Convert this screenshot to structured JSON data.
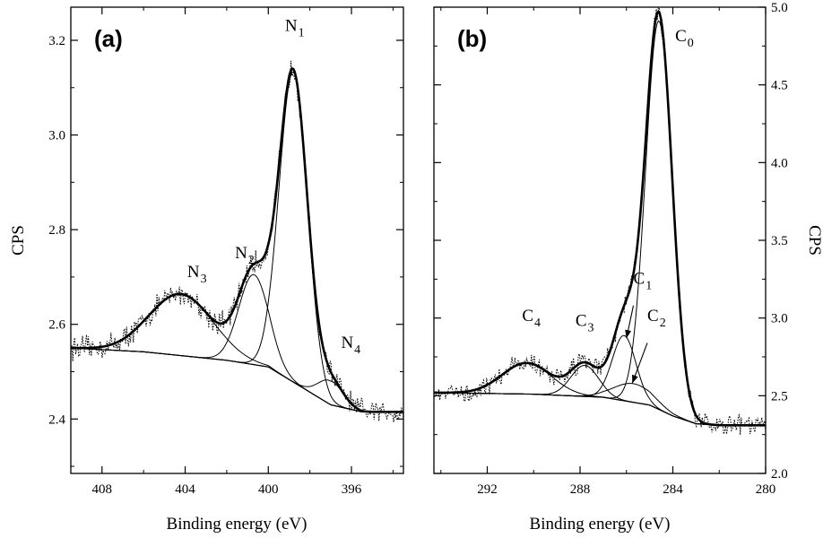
{
  "chart_data": [
    {
      "panel": "(a)",
      "type": "line",
      "xlabel": "Binding energy (eV)",
      "ylabel": "CPS",
      "xlim": [
        409.5,
        393.5
      ],
      "ylim": [
        2.285,
        3.27
      ],
      "x_ticks": [
        408,
        404,
        400,
        396
      ],
      "y_ticks": [
        2.4,
        2.6,
        2.8,
        3.0,
        3.2
      ],
      "y_tick_labels": [
        "2.4",
        "2.6",
        "2.8",
        "3.0",
        "3.2"
      ],
      "baseline": {
        "x": [
          409.5,
          406,
          402,
          400,
          398.5,
          397,
          395.5,
          393.5
        ],
        "y": [
          2.55,
          2.542,
          2.524,
          2.51,
          2.47,
          2.43,
          2.415,
          2.415
        ]
      },
      "envelope_noise": 0.02,
      "components": [
        {
          "name": "N",
          "sub": "1",
          "center": 398.8,
          "height": 0.655,
          "fwhm": 1.6
        },
        {
          "name": "N",
          "sub": "2",
          "center": 400.7,
          "height": 0.19,
          "fwhm": 1.7
        },
        {
          "name": "N",
          "sub": "3",
          "center": 404.2,
          "height": 0.13,
          "fwhm": 3.6
        },
        {
          "name": "N",
          "sub": "4",
          "center": 397.0,
          "height": 0.05,
          "fwhm": 1.4
        }
      ],
      "annotations": [
        {
          "name": "N",
          "sub": "1",
          "x": 399.2,
          "y": 3.22
        },
        {
          "name": "N",
          "sub": "2",
          "x": 401.6,
          "y": 2.74
        },
        {
          "name": "N",
          "sub": "3",
          "x": 403.9,
          "y": 2.7
        },
        {
          "name": "N",
          "sub": "4",
          "x": 396.5,
          "y": 2.55
        }
      ]
    },
    {
      "panel": "(b)",
      "type": "line",
      "xlabel": "Binding energy (eV)",
      "ylabel": "CPS",
      "xlim": [
        294.3,
        280
      ],
      "ylim": [
        2.0,
        5.0
      ],
      "x_ticks": [
        292,
        288,
        284,
        280
      ],
      "y_ticks": [
        2.0,
        2.5,
        3.0,
        3.5,
        4.0,
        4.5,
        5.0
      ],
      "y_tick_labels": [
        "2.0",
        "2.5",
        "3.0",
        "3.5",
        "4.0",
        "4.5",
        "5.0"
      ],
      "baseline": {
        "x": [
          294.3,
          290,
          287,
          285,
          284,
          283,
          282,
          280
        ],
        "y": [
          2.52,
          2.51,
          2.49,
          2.44,
          2.37,
          2.32,
          2.31,
          2.31
        ]
      },
      "envelope_noise": 0.05,
      "components": [
        {
          "name": "C",
          "sub": "0",
          "center": 284.6,
          "height": 2.5,
          "fwhm": 1.35
        },
        {
          "name": "C",
          "sub": "1",
          "center": 286.1,
          "height": 0.42,
          "fwhm": 1.2
        },
        {
          "name": "C",
          "sub": "2",
          "center": 285.7,
          "height": 0.12,
          "fwhm": 2.0
        },
        {
          "name": "C",
          "sub": "3",
          "center": 287.8,
          "height": 0.2,
          "fwhm": 1.4
        },
        {
          "name": "C",
          "sub": "4",
          "center": 290.3,
          "height": 0.2,
          "fwhm": 2.5
        }
      ],
      "annotations": [
        {
          "name": "C",
          "sub": "0",
          "x": 283.9,
          "y": 4.78
        },
        {
          "name": "C",
          "sub": "1",
          "x": 285.7,
          "y": 3.22
        },
        {
          "name": "C",
          "sub": "2",
          "x": 285.1,
          "y": 2.98
        },
        {
          "name": "C",
          "sub": "3",
          "x": 288.2,
          "y": 2.95
        },
        {
          "name": "C",
          "sub": "4",
          "x": 290.5,
          "y": 2.98
        }
      ]
    }
  ]
}
